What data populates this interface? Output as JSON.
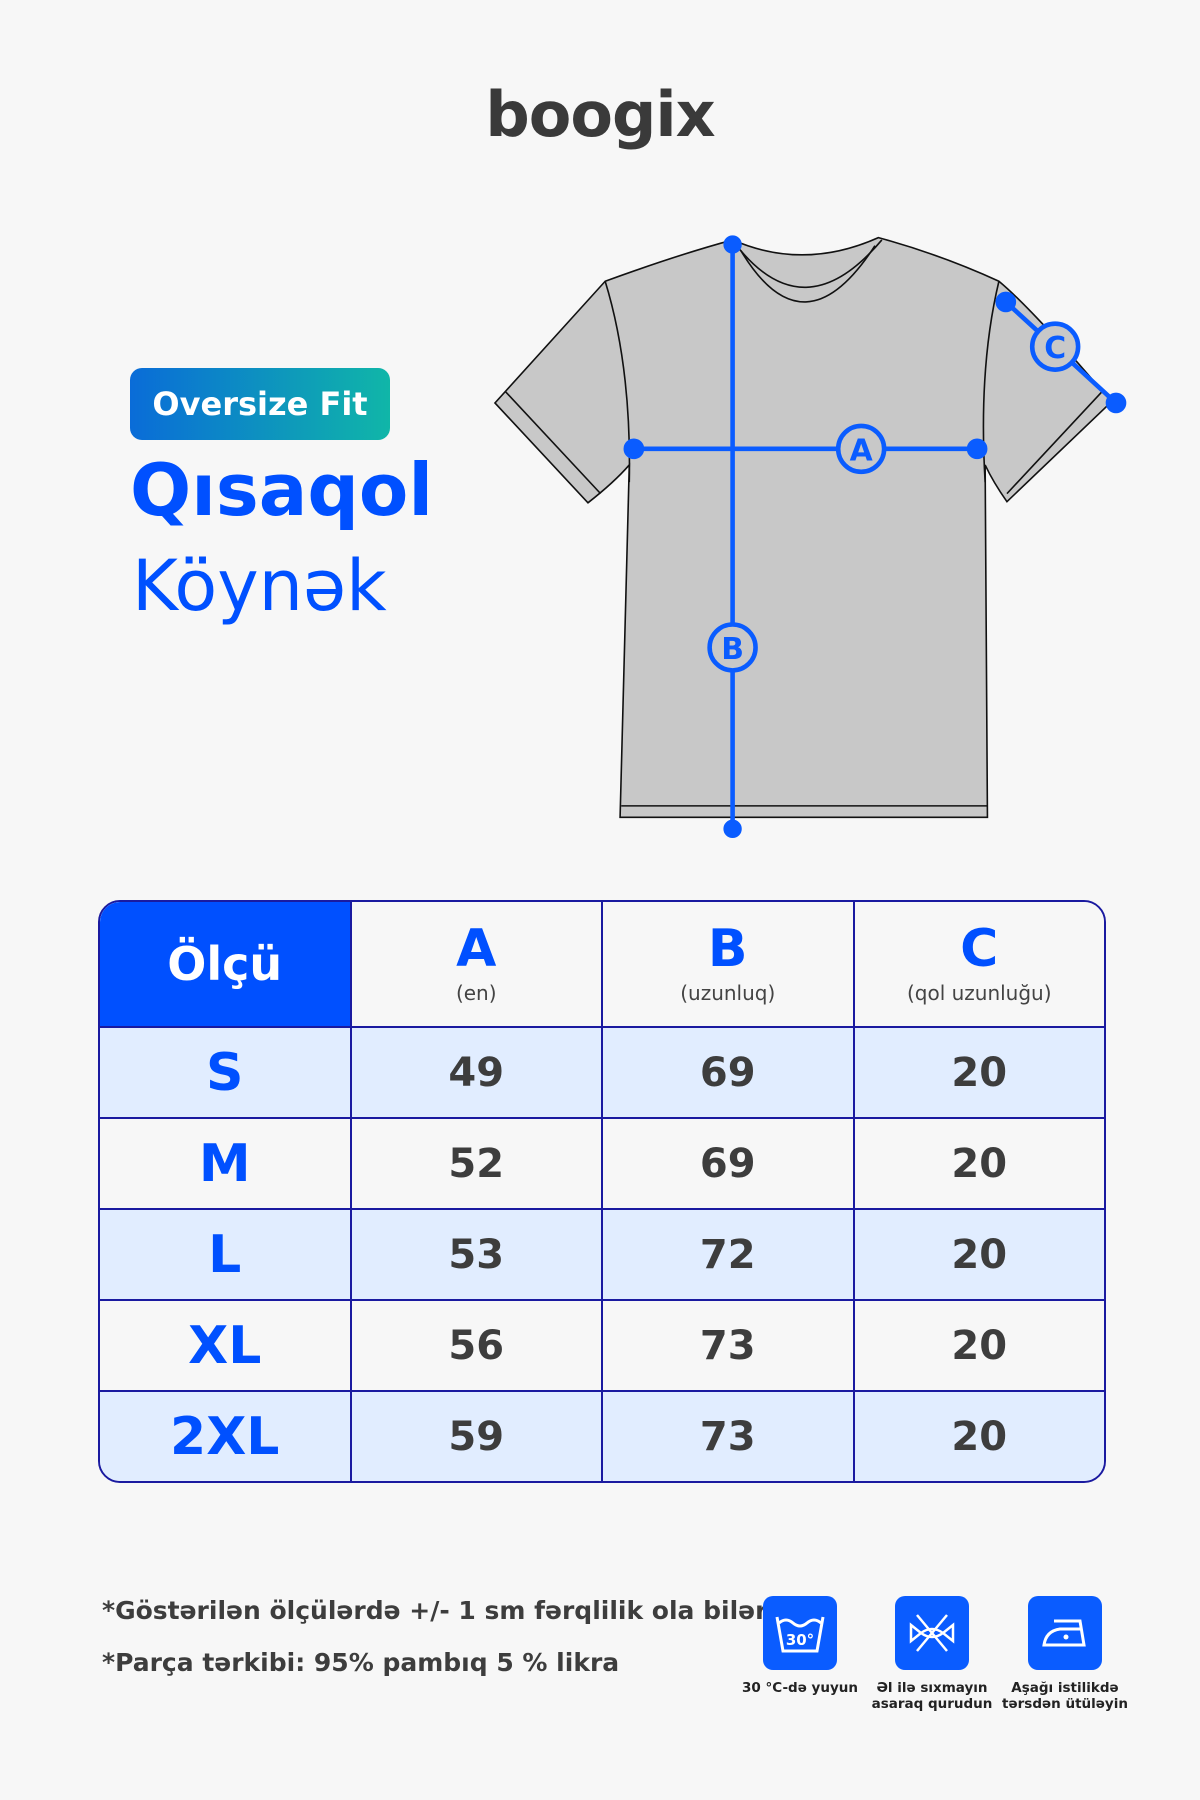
{
  "brand": "boogix",
  "badge": "Oversize Fit",
  "title": {
    "line1": "Qısaqol",
    "line2": "Köynək"
  },
  "diagram": {
    "labels": {
      "a": "A",
      "b": "B",
      "c": "C"
    },
    "shirt_color": "#c8c8c8",
    "line_color": "#0a5cff"
  },
  "table": {
    "size_header": "Ölçü",
    "columns": [
      {
        "letter": "A",
        "desc": "(en)"
      },
      {
        "letter": "B",
        "desc": "(uzunluq)"
      },
      {
        "letter": "C",
        "desc": "(qol uzunluğu)"
      }
    ],
    "rows": [
      {
        "size": "S",
        "a": "49",
        "b": "69",
        "c": "20"
      },
      {
        "size": "M",
        "a": "52",
        "b": "69",
        "c": "20"
      },
      {
        "size": "L",
        "a": "53",
        "b": "72",
        "c": "20"
      },
      {
        "size": "XL",
        "a": "56",
        "b": "73",
        "c": "20"
      },
      {
        "size": "2XL",
        "a": "59",
        "b": "73",
        "c": "20"
      }
    ]
  },
  "notes": [
    "*Göstərilən ölçülərdə +/- 1 sm fərqlilik ola bilər.",
    "*Parça tərkibi: 95% pambıq 5 % likra"
  ],
  "care": [
    {
      "icon": "wash-30-icon",
      "temp": "30°",
      "label": "30 °C-də yuyun"
    },
    {
      "icon": "do-not-wring-icon",
      "label": "Əl ilə sıxmayın asaraq qurudun"
    },
    {
      "icon": "iron-low-icon",
      "label": "Aşağı istilikdə tərsdən ütüləyin"
    }
  ],
  "accent": "#0050ff"
}
